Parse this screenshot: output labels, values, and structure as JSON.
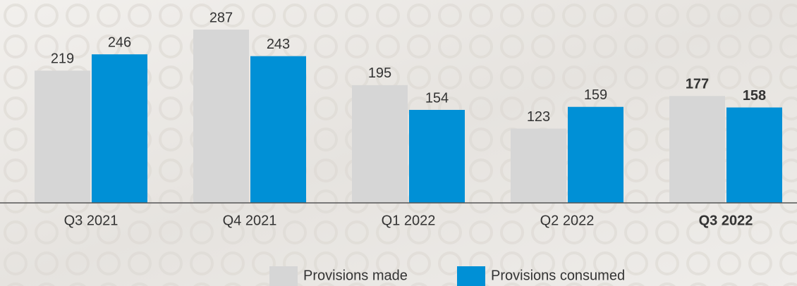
{
  "chart_data": {
    "type": "bar",
    "categories": [
      "Q3 2021",
      "Q4 2021",
      "Q1 2022",
      "Q2 2022",
      "Q3 2022"
    ],
    "series": [
      {
        "name": "Provisions made",
        "color": "#d6d6d6",
        "values": [
          219,
          287,
          195,
          123,
          177
        ]
      },
      {
        "name": "Provisions consumed",
        "color": "#0090d6",
        "values": [
          246,
          243,
          154,
          159,
          158
        ]
      }
    ],
    "ylim": [
      0,
      336
    ],
    "highlight": 4,
    "legend": "bottom"
  }
}
